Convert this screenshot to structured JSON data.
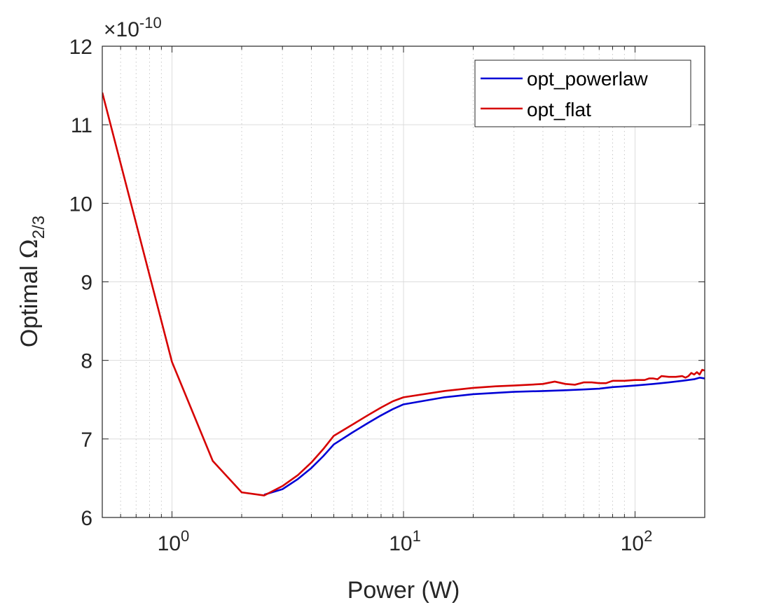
{
  "chart_data": {
    "type": "line",
    "title": "",
    "xlabel": "Power (W)",
    "ylabel_prefix": "Optimal ",
    "ylabel_symbol": "Ω",
    "ylabel_subscript": "2/3",
    "xscale": "log",
    "xlim": [
      0.5,
      200
    ],
    "ylim": [
      6,
      12
    ],
    "y_exponent_multiplier": "×10",
    "y_exponent_power": "-10",
    "xticks": [
      1,
      10,
      100
    ],
    "xtick_base": "10",
    "xtick_exponents": [
      "0",
      "1",
      "2"
    ],
    "yticks": [
      6,
      7,
      8,
      9,
      10,
      11,
      12
    ],
    "ytick_labels": [
      "6",
      "7",
      "8",
      "9",
      "10",
      "11",
      "12"
    ],
    "grid": true,
    "legend_position": "top-right",
    "series": [
      {
        "name": "opt_powerlaw",
        "color": "#0000d6",
        "x": [
          2.5,
          3,
          3.5,
          4,
          4.5,
          5,
          6,
          7,
          8,
          9,
          10,
          15,
          20,
          30,
          40,
          50,
          60,
          70,
          80,
          90,
          100,
          120,
          140,
          160,
          180,
          190,
          200
        ],
        "y": [
          6.29,
          6.36,
          6.49,
          6.63,
          6.78,
          6.93,
          7.08,
          7.2,
          7.3,
          7.38,
          7.44,
          7.53,
          7.57,
          7.6,
          7.61,
          7.62,
          7.63,
          7.64,
          7.66,
          7.67,
          7.68,
          7.7,
          7.72,
          7.74,
          7.76,
          7.78,
          7.77
        ]
      },
      {
        "name": "opt_flat",
        "color": "#d60000",
        "x": [
          0.5,
          1,
          1.5,
          2,
          2.5,
          3,
          3.5,
          4,
          4.5,
          5,
          6,
          7,
          8,
          9,
          10,
          15,
          20,
          25,
          30,
          35,
          40,
          45,
          50,
          55,
          60,
          65,
          70,
          75,
          80,
          90,
          100,
          110,
          115,
          120,
          125,
          130,
          140,
          150,
          160,
          165,
          170,
          175,
          180,
          185,
          190,
          195,
          200
        ],
        "y": [
          11.41,
          7.98,
          6.72,
          6.32,
          6.28,
          6.4,
          6.54,
          6.7,
          6.87,
          7.04,
          7.18,
          7.3,
          7.4,
          7.48,
          7.53,
          7.61,
          7.65,
          7.67,
          7.68,
          7.69,
          7.7,
          7.73,
          7.7,
          7.69,
          7.72,
          7.72,
          7.71,
          7.71,
          7.74,
          7.74,
          7.75,
          7.75,
          7.77,
          7.77,
          7.76,
          7.8,
          7.79,
          7.79,
          7.8,
          7.78,
          7.8,
          7.84,
          7.82,
          7.85,
          7.82,
          7.88,
          7.87
        ]
      }
    ]
  }
}
